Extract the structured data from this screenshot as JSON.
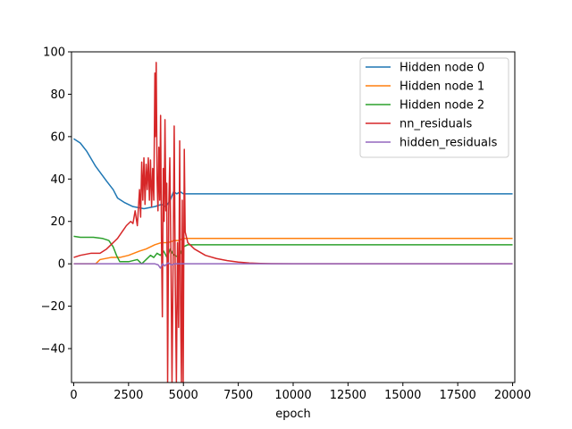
{
  "chart_data": {
    "type": "line",
    "title": "",
    "xlabel": "epoch",
    "ylabel": "",
    "xlim": [
      -100,
      20100
    ],
    "ylim": [
      -56,
      100
    ],
    "x_ticks": [
      0,
      2500,
      5000,
      7500,
      10000,
      12500,
      15000,
      17500,
      20000
    ],
    "x_tick_labels": [
      "0",
      "2500",
      "5000",
      "7500",
      "10000",
      "12500",
      "15000",
      "17500",
      "20000"
    ],
    "y_ticks": [
      -40,
      -20,
      0,
      20,
      40,
      60,
      80,
      100
    ],
    "y_tick_labels": [
      "−40",
      "−20",
      "0",
      "20",
      "40",
      "60",
      "80",
      "100"
    ],
    "grid": false,
    "legend_position": "top-right",
    "series": [
      {
        "name": "Hidden node 0",
        "color": "#1f77b4",
        "points": [
          [
            0,
            59
          ],
          [
            300,
            57
          ],
          [
            600,
            53
          ],
          [
            1000,
            46
          ],
          [
            1500,
            39
          ],
          [
            1800,
            35
          ],
          [
            2000,
            31
          ],
          [
            2300,
            29
          ],
          [
            2700,
            27
          ],
          [
            3200,
            26
          ],
          [
            3700,
            27
          ],
          [
            4000,
            28
          ],
          [
            4200,
            27
          ],
          [
            4400,
            30
          ],
          [
            4550,
            34
          ],
          [
            4700,
            33
          ],
          [
            4850,
            34
          ],
          [
            5000,
            33
          ],
          [
            6000,
            33
          ],
          [
            10000,
            33
          ],
          [
            15000,
            33
          ],
          [
            20000,
            33
          ]
        ]
      },
      {
        "name": "Hidden node 1",
        "color": "#ff7f0e",
        "points": [
          [
            0,
            0
          ],
          [
            1000,
            0
          ],
          [
            1200,
            2
          ],
          [
            1700,
            3
          ],
          [
            2100,
            3
          ],
          [
            2500,
            4
          ],
          [
            3000,
            6
          ],
          [
            3300,
            7
          ],
          [
            3700,
            9
          ],
          [
            4000,
            10
          ],
          [
            4300,
            10
          ],
          [
            4600,
            11
          ],
          [
            4800,
            11
          ],
          [
            5000,
            12
          ],
          [
            6000,
            12
          ],
          [
            10000,
            12
          ],
          [
            15000,
            12
          ],
          [
            20000,
            12
          ]
        ]
      },
      {
        "name": "Hidden node 2",
        "color": "#2ca02c",
        "points": [
          [
            0,
            13
          ],
          [
            300,
            12.5
          ],
          [
            900,
            12.5
          ],
          [
            1300,
            12
          ],
          [
            1600,
            11
          ],
          [
            1800,
            8
          ],
          [
            1950,
            4
          ],
          [
            2100,
            1
          ],
          [
            2500,
            1
          ],
          [
            2900,
            2
          ],
          [
            3100,
            0
          ],
          [
            3300,
            2
          ],
          [
            3500,
            4
          ],
          [
            3650,
            3
          ],
          [
            3800,
            5
          ],
          [
            3950,
            4
          ],
          [
            4100,
            6
          ],
          [
            4250,
            3
          ],
          [
            4400,
            7
          ],
          [
            4500,
            5
          ],
          [
            4600,
            4
          ],
          [
            4800,
            3
          ],
          [
            5000,
            8
          ],
          [
            5200,
            9
          ],
          [
            6000,
            9
          ],
          [
            10000,
            9
          ],
          [
            15000,
            9
          ],
          [
            20000,
            9
          ]
        ]
      },
      {
        "name": "nn_residuals",
        "color": "#d62728",
        "points": [
          [
            0,
            3
          ],
          [
            300,
            4
          ],
          [
            800,
            5
          ],
          [
            1200,
            5
          ],
          [
            1500,
            7
          ],
          [
            1800,
            10
          ],
          [
            2000,
            12
          ],
          [
            2200,
            15
          ],
          [
            2400,
            18
          ],
          [
            2600,
            20
          ],
          [
            2700,
            19
          ],
          [
            2800,
            25
          ],
          [
            2900,
            18
          ],
          [
            3000,
            35
          ],
          [
            3050,
            22
          ],
          [
            3100,
            48
          ],
          [
            3150,
            30
          ],
          [
            3200,
            50
          ],
          [
            3250,
            28
          ],
          [
            3300,
            47
          ],
          [
            3350,
            35
          ],
          [
            3400,
            50
          ],
          [
            3450,
            30
          ],
          [
            3500,
            49
          ],
          [
            3550,
            27
          ],
          [
            3600,
            45
          ],
          [
            3650,
            30
          ],
          [
            3700,
            90
          ],
          [
            3720,
            60
          ],
          [
            3760,
            95
          ],
          [
            3800,
            40
          ],
          [
            3840,
            25
          ],
          [
            3880,
            55
          ],
          [
            3920,
            30
          ],
          [
            3960,
            70
          ],
          [
            4000,
            12
          ],
          [
            4040,
            -25
          ],
          [
            4080,
            45
          ],
          [
            4120,
            20
          ],
          [
            4160,
            68
          ],
          [
            4200,
            25
          ],
          [
            4240,
            38
          ],
          [
            4280,
            -56
          ],
          [
            4330,
            25
          ],
          [
            4380,
            50
          ],
          [
            4430,
            5
          ],
          [
            4480,
            -56
          ],
          [
            4530,
            0
          ],
          [
            4580,
            65
          ],
          [
            4630,
            -10
          ],
          [
            4680,
            -56
          ],
          [
            4730,
            10
          ],
          [
            4780,
            -30
          ],
          [
            4830,
            58
          ],
          [
            4870,
            -20
          ],
          [
            4910,
            -56
          ],
          [
            4950,
            30
          ],
          [
            4990,
            -56
          ],
          [
            5040,
            54
          ],
          [
            5080,
            15
          ],
          [
            5200,
            10
          ],
          [
            5500,
            7
          ],
          [
            6000,
            4
          ],
          [
            6500,
            2.5
          ],
          [
            7000,
            1.5
          ],
          [
            7500,
            0.8
          ],
          [
            8000,
            0.4
          ],
          [
            8500,
            0.2
          ],
          [
            9000,
            0.1
          ],
          [
            10000,
            0
          ],
          [
            15000,
            0
          ],
          [
            20000,
            0
          ]
        ]
      },
      {
        "name": "hidden_residuals",
        "color": "#9467bd",
        "points": [
          [
            0,
            0
          ],
          [
            3700,
            0
          ],
          [
            3850,
            -0.5
          ],
          [
            3950,
            -2
          ],
          [
            4050,
            0
          ],
          [
            4150,
            -1
          ],
          [
            4300,
            0.5
          ],
          [
            4450,
            -0.5
          ],
          [
            4600,
            0
          ],
          [
            20000,
            0
          ]
        ]
      }
    ]
  }
}
